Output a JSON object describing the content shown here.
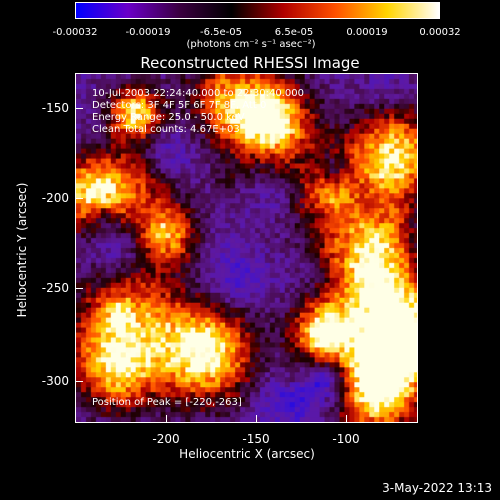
{
  "colorbar": {
    "ticks": [
      "-0.00032",
      "-0.00019",
      "-6.5e-05",
      "6.5e-05",
      "0.00019",
      "0.00032"
    ],
    "units": "(photons cm⁻² s⁻¹ asec⁻²)",
    "colors": [
      "#0000ff",
      "#6a00c8",
      "#3a0040",
      "#000000",
      "#b00000",
      "#ff5000",
      "#ffd400",
      "#ffffff"
    ]
  },
  "title": "Reconstructed RHESSI Image",
  "info": {
    "time_range": "10-Jul-2003 22:24:40.000 to 22:30:40.000",
    "detectors": "Detectors: 3F 4F 5F 6F 7F 8F, Att 0",
    "energy": "Energy Range: 25.0 - 50.0 keV",
    "method": "Clean     Total counts: 4.67E+03",
    "peak": "Position of Peak = [-220,-263]"
  },
  "x_axis": {
    "label": "Heliocentric X (arcsec)",
    "ticks": [
      "-200",
      "-150",
      "-100"
    ]
  },
  "y_axis": {
    "label": "Heliocentric Y (arcsec)",
    "ticks": [
      "-150",
      "-200",
      "-250",
      "-300"
    ]
  },
  "timestamp": "3-May-2022 13:13"
}
